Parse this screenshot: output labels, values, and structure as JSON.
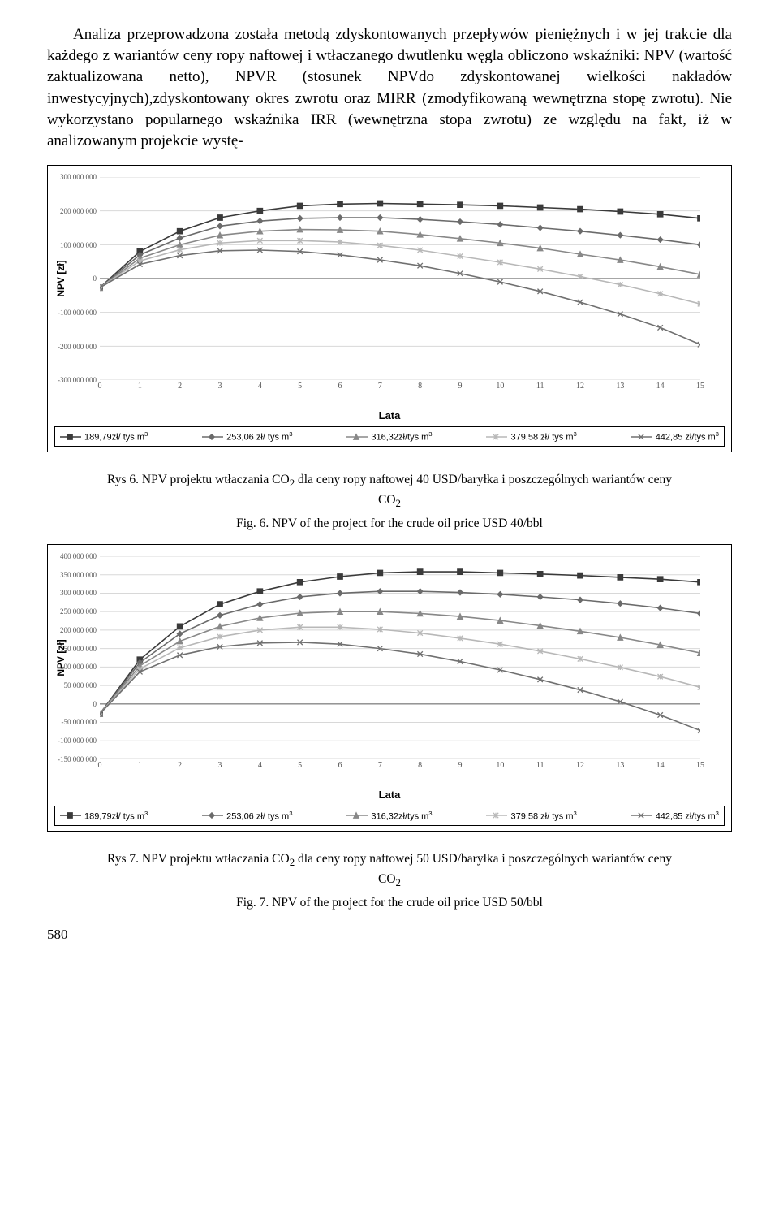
{
  "paragraph": "Analiza przeprowadzona została metodą zdyskontowanych przepływów pieniężnych i w jej trakcie dla każdego z wariantów ceny ropy naftowej i wtłaczanego dwutlenku węgla obliczono wskaźniki: NPV (wartość zaktualizowana netto), NPVR (stosunek NPVdo zdyskontowanej wielkości nakładów inwestycyjnych),zdyskontowany okres zwrotu oraz MIRR (zmodyfikowaną wewnętrzna stopę zwrotu). Nie wykorzystano popularnego wskaźnika IRR (wewnętrzna stopa zwrotu) ze względu na fakt, iż w analizowanym projekcie wystę-",
  "legend_labels": [
    "189,79zł/ tys m",
    "253,06 zł/ tys m",
    "316,32zł/tys m",
    "379,58 zł/ tys m",
    "442,85 zł/tys m"
  ],
  "markers": [
    "square",
    "diamond",
    "triangle",
    "star",
    "x"
  ],
  "series_colors": [
    "#3a3a3a",
    "#6b6b6b",
    "#888888",
    "#b8b8b8",
    "#707070"
  ],
  "chart1": {
    "y_label": "NPV [zł]",
    "x_label": "Lata",
    "x_domain": [
      0,
      15
    ],
    "y_domain": [
      -300000000,
      300000000
    ],
    "y_ticks": [
      -300000000,
      -200000000,
      -100000000,
      0,
      100000000,
      200000000,
      300000000
    ],
    "y_tick_labels": [
      "-300 000 000",
      "-200 000 000",
      "-100 000 000",
      "0",
      "100 000 000",
      "200 000 000",
      "300 000 000"
    ],
    "x_ticks": [
      0,
      1,
      2,
      3,
      4,
      5,
      6,
      7,
      8,
      9,
      10,
      11,
      12,
      13,
      14,
      15
    ],
    "series": [
      [
        -27,
        80,
        140,
        180,
        200,
        215,
        220,
        222,
        220,
        218,
        215,
        210,
        205,
        198,
        190,
        178
      ],
      [
        -27,
        70,
        120,
        155,
        170,
        178,
        180,
        180,
        175,
        168,
        160,
        150,
        140,
        128,
        115,
        100
      ],
      [
        -27,
        60,
        100,
        128,
        140,
        145,
        144,
        140,
        130,
        118,
        105,
        90,
        72,
        55,
        35,
        12
      ],
      [
        -27,
        52,
        85,
        105,
        112,
        112,
        108,
        98,
        84,
        66,
        48,
        28,
        6,
        -18,
        -45,
        -75
      ],
      [
        -27,
        42,
        68,
        82,
        84,
        80,
        70,
        55,
        38,
        15,
        -10,
        -38,
        -70,
        -105,
        -145,
        -195
      ]
    ],
    "scale": 1000000
  },
  "chart2": {
    "y_label": "NPV [zł]",
    "x_label": "Lata",
    "x_domain": [
      0,
      15
    ],
    "y_domain": [
      -150000000,
      400000000
    ],
    "y_ticks": [
      -150000000,
      -100000000,
      -50000000,
      0,
      50000000,
      100000000,
      150000000,
      200000000,
      250000000,
      300000000,
      350000000,
      400000000
    ],
    "y_tick_labels": [
      "-150 000 000",
      "-100 000 000",
      "-50 000 000",
      "0",
      "50 000 000",
      "100 000 000",
      "150 000 000",
      "200 000 000",
      "250 000 000",
      "300 000 000",
      "350 000 000",
      "400 000 000"
    ],
    "x_ticks": [
      0,
      1,
      2,
      3,
      4,
      5,
      6,
      7,
      8,
      9,
      10,
      11,
      12,
      13,
      14,
      15
    ],
    "series": [
      [
        -27,
        120,
        210,
        270,
        305,
        330,
        345,
        355,
        358,
        358,
        355,
        352,
        348,
        343,
        338,
        330
      ],
      [
        -27,
        112,
        190,
        240,
        270,
        290,
        300,
        305,
        305,
        302,
        297,
        290,
        282,
        272,
        260,
        245
      ],
      [
        -27,
        103,
        170,
        210,
        233,
        246,
        250,
        250,
        245,
        237,
        226,
        212,
        197,
        180,
        160,
        138
      ],
      [
        -27,
        95,
        152,
        182,
        200,
        208,
        208,
        202,
        192,
        178,
        162,
        143,
        122,
        99,
        74,
        45
      ],
      [
        -27,
        87,
        132,
        155,
        165,
        167,
        162,
        150,
        135,
        115,
        92,
        66,
        38,
        6,
        -30,
        -72
      ]
    ],
    "scale": 1000000
  },
  "caption1_pl_a": "Rys 6. NPV projektu wtłaczania CO",
  "caption1_pl_b": " dla ceny ropy naftowej 40 USD/baryłka i poszczególnych wariantów ceny",
  "caption1_pl_c": "CO",
  "caption1_en": "Fig. 6. NPV of the project for the crude oil price USD 40/bbl",
  "caption2_pl_a": "Rys 7. NPV projektu wtłaczania CO",
  "caption2_pl_b": " dla ceny ropy naftowej 50 USD/baryłka i poszczególnych wariantów ceny",
  "caption2_pl_c": "CO",
  "caption2_en": "Fig. 7. NPV of the project for the crude oil price USD 50/bbl",
  "pagenum": "580",
  "sub2": "2",
  "sup3": "3"
}
